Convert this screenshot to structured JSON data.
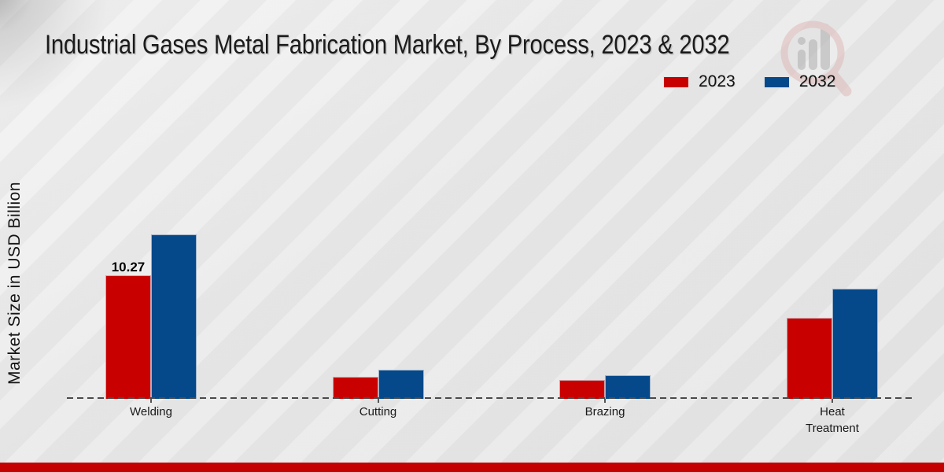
{
  "chart_data": {
    "type": "bar",
    "title": "Industrial Gases Metal Fabrication Market, By Process, 2023 & 2032",
    "ylabel": "Market Size in USD Billion",
    "categories": [
      "Welding",
      "Cutting",
      "Brazing",
      "Heat Treatment"
    ],
    "series": [
      {
        "name": "2023",
        "color": "#c80000",
        "values": [
          10.27,
          1.83,
          1.57,
          6.74
        ]
      },
      {
        "name": "2032",
        "color": "#05498a",
        "values": [
          13.67,
          2.42,
          1.96,
          9.16
        ]
      }
    ],
    "data_labels": [
      {
        "series_index": 0,
        "category_index": 0,
        "text": "10.27"
      }
    ],
    "legend_position": "top-right",
    "grid": false,
    "y_axis_ticks_visible": false,
    "baseline_style": "dashed"
  },
  "watermark": {
    "icon": "magnifier-bar-chart-logo",
    "circle_color": "#dfb6b6",
    "bars_color": "#a9a9a9"
  },
  "footer": {
    "accent_color": "#c40000"
  }
}
